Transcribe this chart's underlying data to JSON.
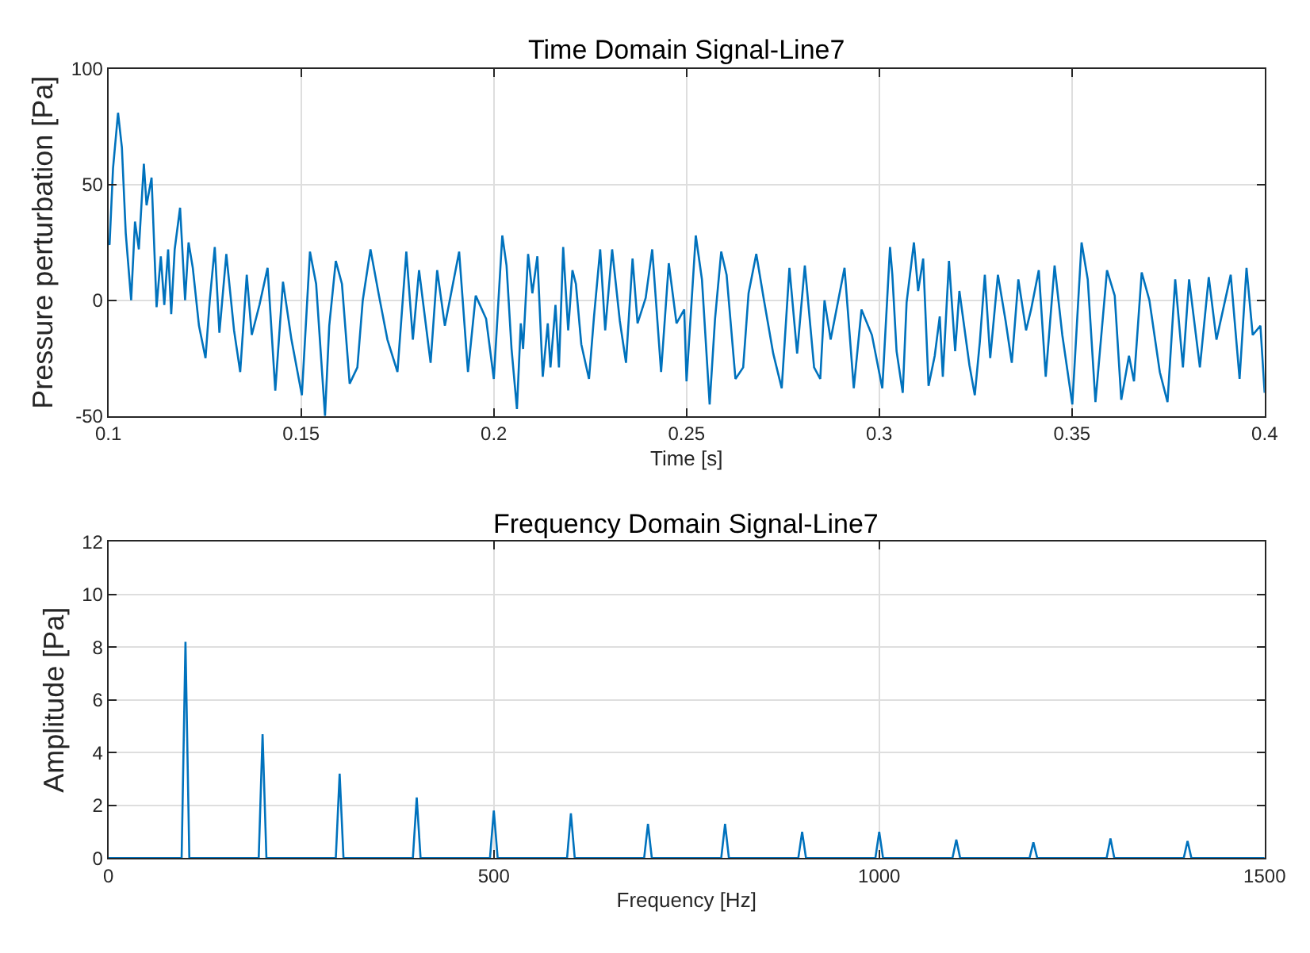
{
  "chart_data": [
    {
      "type": "line",
      "title": "Time Domain Signal-Line7",
      "xlabel": "Time [s]",
      "ylabel": "Pressure perturbation [Pa]",
      "xlim": [
        0.1,
        0.4
      ],
      "xticks": [
        0.1,
        0.15,
        0.2,
        0.25,
        0.3,
        0.35,
        0.4
      ],
      "ylim": [
        -50,
        100
      ],
      "yticks": [
        -50,
        0,
        50,
        100
      ],
      "grid": true,
      "series": [
        {
          "color": "#0072bd",
          "x": [
            0.1,
            0.1003,
            0.1012,
            0.1025,
            0.1035,
            0.1045,
            0.1059,
            0.1069,
            0.1079,
            0.1092,
            0.1099,
            0.1112,
            0.1125,
            0.1136,
            0.1145,
            0.1155,
            0.1163,
            0.1172,
            0.1186,
            0.1199,
            0.1208,
            0.1219,
            0.1235,
            0.1252,
            0.1263,
            0.1276,
            0.1288,
            0.1306,
            0.1326,
            0.1342,
            0.1359,
            0.1372,
            0.1392,
            0.1413,
            0.1433,
            0.1453,
            0.1475,
            0.1502,
            0.1523,
            0.1539,
            0.1562,
            0.1573,
            0.159,
            0.1606,
            0.1626,
            0.1646,
            0.166,
            0.168,
            0.1702,
            0.1724,
            0.175,
            0.1773,
            0.179,
            0.1806,
            0.1836,
            0.1853,
            0.1873,
            0.191,
            0.1933,
            0.1953,
            0.198,
            0.2,
            0.2022,
            0.2033,
            0.2046,
            0.206,
            0.207,
            0.2076,
            0.2089,
            0.21,
            0.2113,
            0.2127,
            0.214,
            0.2147,
            0.216,
            0.2169,
            0.218,
            0.2193,
            0.2204,
            0.2213,
            0.2227,
            0.2247,
            0.226,
            0.2276,
            0.2289,
            0.2307,
            0.2327,
            0.2343,
            0.236,
            0.2373,
            0.2394,
            0.2411,
            0.2434,
            0.2454,
            0.2474,
            0.2494,
            0.25,
            0.2524,
            0.254,
            0.256,
            0.2574,
            0.259,
            0.2604,
            0.2627,
            0.2647,
            0.2661,
            0.2681,
            0.2701,
            0.2725,
            0.2747,
            0.2767,
            0.2787,
            0.2807,
            0.2831,
            0.2847,
            0.2858,
            0.2874,
            0.291,
            0.2934,
            0.2954,
            0.2981,
            0.3008,
            0.3028,
            0.3034,
            0.3045,
            0.3061,
            0.3071,
            0.309,
            0.3101,
            0.3114,
            0.3128,
            0.3144,
            0.3157,
            0.3165,
            0.3181,
            0.3197,
            0.3208,
            0.3234,
            0.3248,
            0.3261,
            0.3274,
            0.3288,
            0.3308,
            0.3328,
            0.3344,
            0.3361,
            0.3381,
            0.3394,
            0.3414,
            0.3432,
            0.3455,
            0.3475,
            0.3501,
            0.3525,
            0.3541,
            0.3561,
            0.3591,
            0.3611,
            0.3628,
            0.3648,
            0.3661,
            0.3681,
            0.3701,
            0.3728,
            0.3748,
            0.3768,
            0.3788,
            0.3804,
            0.3832,
            0.3855,
            0.3875,
            0.3912,
            0.3935,
            0.3953,
            0.3969,
            0.3989,
            0.4
          ],
          "values": [
            25,
            24,
            57,
            81,
            66,
            29,
            0,
            34,
            22,
            59,
            41,
            53,
            -3,
            19,
            -2,
            22,
            -6,
            22,
            40,
            0,
            25,
            14,
            -11,
            -25,
            0,
            23,
            -14,
            20,
            -13,
            -31,
            11,
            -15,
            -2,
            14,
            -39,
            8,
            -17,
            -41,
            21,
            7,
            -50,
            -11,
            17,
            7,
            -36,
            -29,
            0,
            22,
            2,
            -17,
            -31,
            21,
            -17,
            13,
            -27,
            13,
            -11,
            21,
            -31,
            2,
            -8,
            -34,
            28,
            15,
            -21,
            -47,
            -10,
            -21,
            20,
            3,
            19,
            -33,
            -10,
            -29,
            -2,
            -29,
            23,
            -13,
            13,
            7,
            -19,
            -34,
            -7,
            22,
            -13,
            22,
            -9,
            -27,
            18,
            -10,
            1,
            22,
            -31,
            16,
            -10,
            -4,
            -35,
            28,
            9,
            -45,
            -8,
            21,
            11,
            -34,
            -29,
            3,
            20,
            0,
            -23,
            -38,
            14,
            -23,
            15,
            -29,
            -34,
            0,
            -17,
            14,
            -38,
            -4,
            -15,
            -38,
            23,
            11,
            -22,
            -40,
            -1,
            25,
            4,
            18,
            -37,
            -24,
            -7,
            -33,
            17,
            -22,
            4,
            -28,
            -41,
            -18,
            11,
            -25,
            11,
            -9,
            -27,
            9,
            -13,
            -4,
            13,
            -33,
            15,
            -15,
            -45,
            25,
            9,
            -44,
            13,
            2,
            -43,
            -24,
            -35,
            12,
            0,
            -31,
            -44,
            9,
            -29,
            9,
            -29,
            10,
            -17,
            11,
            -34,
            14,
            -15,
            -11,
            -40
          ]
        }
      ]
    },
    {
      "type": "line",
      "title": "Frequency Domain Signal-Line7",
      "xlabel": "Frequency [Hz]",
      "ylabel": "Amplitude [Pa]",
      "xlim": [
        0,
        1500
      ],
      "xticks": [
        0,
        500,
        1000,
        1500
      ],
      "ylim": [
        0,
        12
      ],
      "yticks": [
        0,
        2,
        4,
        6,
        8,
        10,
        12
      ],
      "grid": true,
      "series": [
        {
          "color": "#0072bd",
          "x": [
            0,
            95,
            100,
            105,
            195,
            200,
            205,
            295,
            300,
            305,
            395,
            400,
            405,
            495,
            500,
            505,
            595,
            600,
            605,
            695,
            700,
            705,
            795,
            800,
            805,
            895,
            900,
            905,
            995,
            1000,
            1005,
            1095,
            1100,
            1105,
            1195,
            1200,
            1205,
            1295,
            1300,
            1305,
            1395,
            1400,
            1405,
            1500
          ],
          "values": [
            0,
            0,
            8.2,
            0,
            0,
            4.7,
            0,
            0,
            3.2,
            0,
            0,
            2.3,
            0,
            0,
            1.8,
            0,
            0,
            1.7,
            0,
            0,
            1.3,
            0,
            0,
            1.3,
            0,
            0,
            1.0,
            0,
            0,
            1.0,
            0,
            0,
            0.7,
            0,
            0,
            0.6,
            0,
            0,
            0.75,
            0,
            0,
            0.65,
            0,
            0
          ]
        }
      ]
    }
  ]
}
